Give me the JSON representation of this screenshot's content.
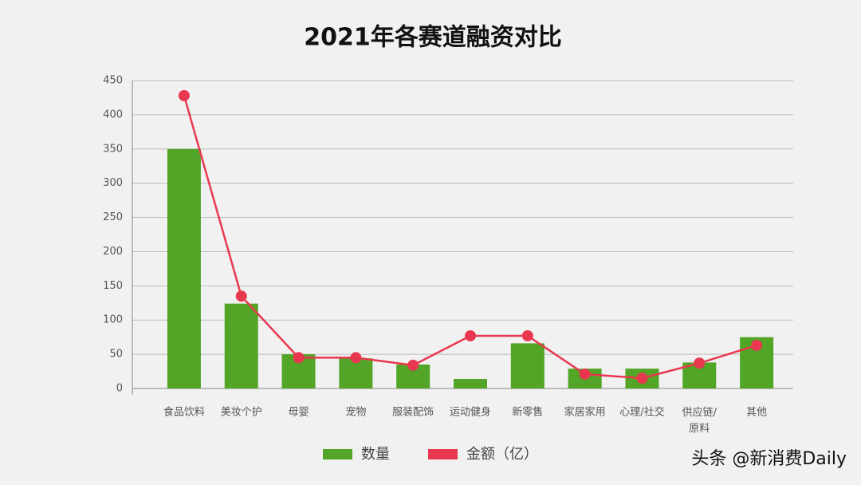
{
  "chart_data": {
    "type": "bar_line",
    "title": "2021年各赛道融资对比",
    "categories": [
      "食品饮料",
      "美妆个护",
      "母婴",
      "宠物",
      "服装配饰",
      "运动健身",
      "新零售",
      "家居家用",
      "心理/社交",
      "供应链/\n原料",
      "其他"
    ],
    "series": [
      {
        "name": "数量",
        "type": "bar",
        "color": "#52a526",
        "values": [
          350,
          124,
          50,
          44,
          35,
          14,
          66,
          29,
          29,
          38,
          75
        ]
      },
      {
        "name": "金额（亿）",
        "type": "line",
        "color": "#e8384f",
        "values": [
          428,
          135,
          45,
          45,
          34,
          77,
          77,
          21,
          15,
          37,
          63
        ]
      }
    ],
    "ylim": [
      0,
      450
    ],
    "yticks": [
      0,
      50,
      100,
      150,
      200,
      250,
      300,
      350,
      400,
      450
    ],
    "grid": true,
    "watermark": "头条 @新消费Daily"
  }
}
